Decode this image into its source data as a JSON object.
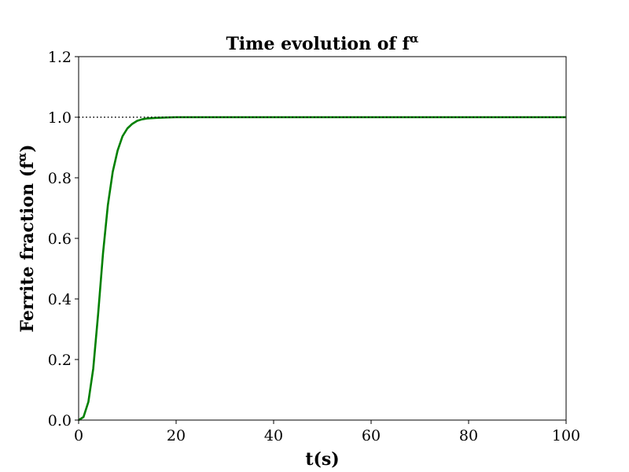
{
  "chart_data": {
    "type": "line",
    "title": "Time evolution of f",
    "title_superscript": "α",
    "xlabel": "t(s)",
    "ylabel": "Ferrite fraction (f",
    "ylabel_superscript": "α",
    "ylabel_suffix": ")",
    "xlim": [
      0,
      100
    ],
    "ylim": [
      0,
      1.2
    ],
    "xticks": [
      0,
      20,
      40,
      60,
      80,
      100
    ],
    "xtick_labels": [
      "0",
      "20",
      "40",
      "60",
      "80",
      "100"
    ],
    "yticks": [
      0,
      0.2,
      0.4,
      0.6,
      0.8,
      1.0,
      1.2
    ],
    "ytick_labels": [
      "0.0",
      "0.2",
      "0.4",
      "0.6",
      "0.8",
      "1.0",
      "1.2"
    ],
    "grid": false,
    "series": [
      {
        "color": "#008000",
        "style": "solid",
        "x": [
          0,
          1,
          2,
          3,
          4,
          5,
          6,
          7,
          8,
          9,
          10,
          11,
          12,
          13,
          14,
          16,
          18,
          20,
          25,
          30,
          40,
          50,
          60,
          70,
          80,
          90,
          100
        ],
        "y": [
          0,
          0.01,
          0.06,
          0.17,
          0.35,
          0.55,
          0.71,
          0.82,
          0.89,
          0.937,
          0.963,
          0.978,
          0.988,
          0.993,
          0.996,
          0.998,
          0.999,
          1.0,
          1.0,
          1.0,
          1.0,
          1.0,
          1.0,
          1.0,
          1.0,
          1.0,
          1.0
        ]
      },
      {
        "color": "#000000",
        "style": "dotted",
        "x": [
          0,
          100
        ],
        "y": [
          1.0,
          1.0
        ]
      }
    ]
  }
}
